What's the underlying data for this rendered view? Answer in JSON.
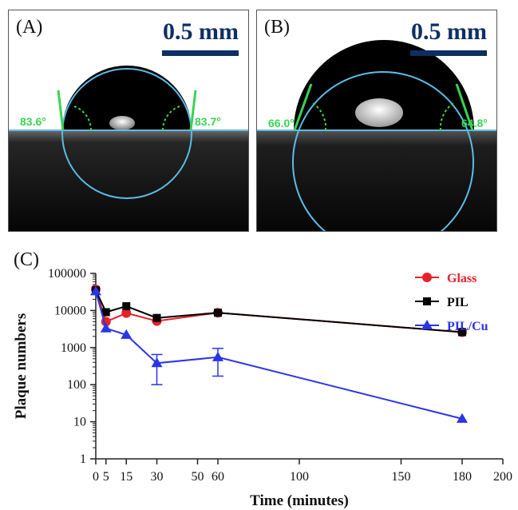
{
  "panels": [
    {
      "label": "(A)",
      "scale": "0.5 mm",
      "angle_left": "83.6°",
      "angle_right": "83.7°"
    },
    {
      "label": "(B)",
      "scale": "0.5 mm",
      "angle_left": "66.0°",
      "angle_right": "64.8°"
    }
  ],
  "colors": {
    "glass": "#e8202a",
    "pil": "#000000",
    "pil_cu": "#2a34e8",
    "baseline": "#5bbde8",
    "angle": "#39d353",
    "scale": "#0d2f63"
  },
  "chart_data": {
    "type": "line",
    "panel_label": "(C)",
    "xlabel": "Time (minutes)",
    "ylabel": "Plaque numbers",
    "xlim": [
      0,
      200
    ],
    "ylim": [
      1,
      100000
    ],
    "yscale": "log",
    "x_ticks": [
      0,
      5,
      15,
      30,
      50,
      60,
      100,
      150,
      180,
      200
    ],
    "y_ticks": [
      1,
      10,
      100,
      1000,
      10000,
      100000
    ],
    "y_tick_labels": [
      "1",
      "10",
      "100",
      "1000",
      "10000",
      "100000"
    ],
    "legend_position": "top-right",
    "series": [
      {
        "name": "Glass",
        "color": "#e8202a",
        "marker": "circle",
        "points": [
          [
            0,
            37000
          ],
          [
            5,
            5000
          ],
          [
            15,
            8500
          ],
          [
            30,
            5200
          ],
          [
            60,
            8700
          ],
          [
            180,
            2600
          ]
        ]
      },
      {
        "name": "PIL",
        "color": "#000000",
        "marker": "square",
        "points": [
          [
            0,
            35000
          ],
          [
            5,
            9000
          ],
          [
            15,
            13000
          ],
          [
            30,
            6300
          ],
          [
            60,
            8700
          ],
          [
            180,
            2600
          ]
        ]
      },
      {
        "name": "PIL/Cu",
        "color": "#2a34e8",
        "marker": "triangle",
        "points": [
          [
            0,
            33000
          ],
          [
            5,
            3300
          ],
          [
            15,
            2200
          ],
          [
            30,
            380
          ],
          [
            60,
            550
          ],
          [
            180,
            12
          ]
        ],
        "error_bars": [
          [
            30,
            100,
            650
          ],
          [
            60,
            170,
            950
          ]
        ]
      }
    ]
  }
}
